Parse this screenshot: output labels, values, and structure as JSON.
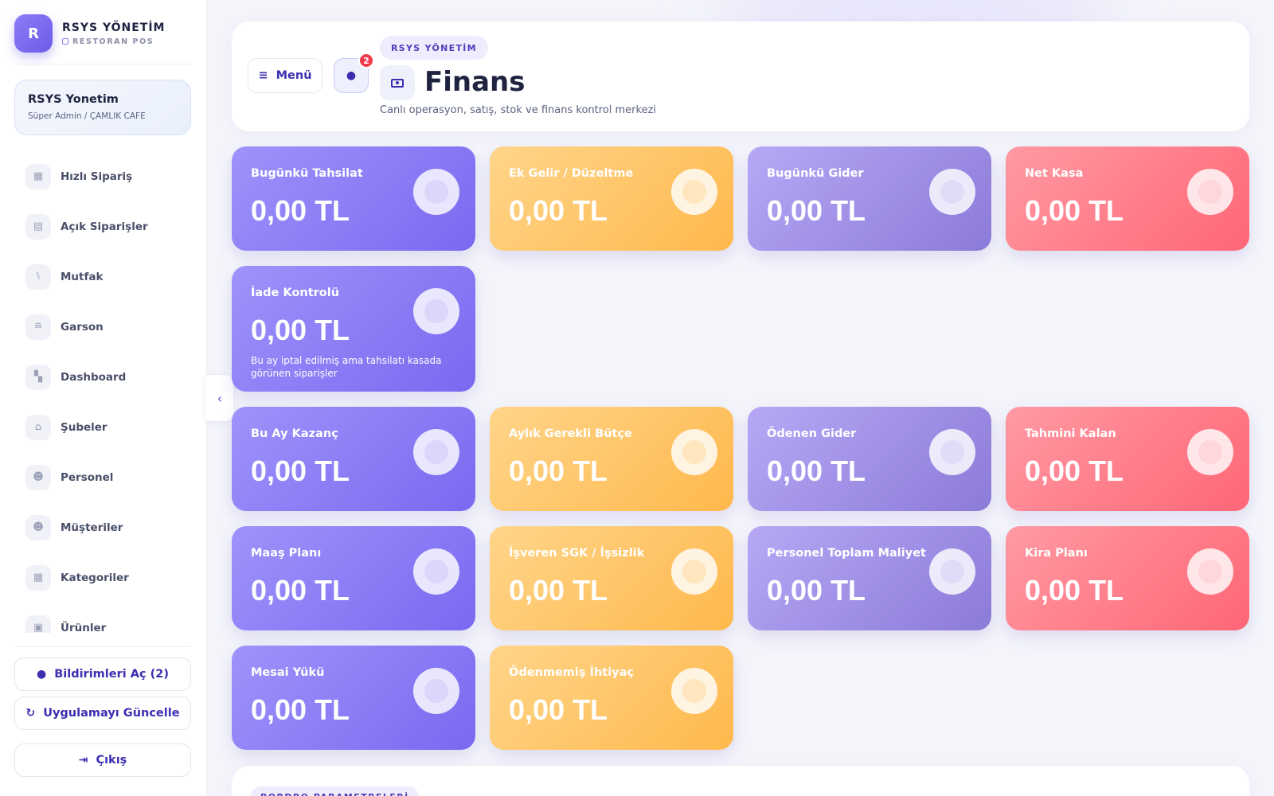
{
  "brand": {
    "logo_letter": "R",
    "title": "RSYS YÖNETİM",
    "subtitle": "RESTORAN POS"
  },
  "user": {
    "name": "RSYS Yonetim",
    "role": "Süper Admin / ÇAMLIK CAFE"
  },
  "nav": [
    {
      "label": "Hızlı Sipariş",
      "icon": "calculator-icon"
    },
    {
      "label": "Açık Siparişler",
      "icon": "receipt-icon"
    },
    {
      "label": "Mutfak",
      "icon": "utensils-icon"
    },
    {
      "label": "Garson",
      "icon": "tray-icon"
    },
    {
      "label": "Dashboard",
      "icon": "dashboard-icon"
    },
    {
      "label": "Şubeler",
      "icon": "store-icon"
    },
    {
      "label": "Personel",
      "icon": "people-icon"
    },
    {
      "label": "Müşteriler",
      "icon": "people-icon"
    },
    {
      "label": "Kategoriler",
      "icon": "grid-icon"
    },
    {
      "label": "Ürünler",
      "icon": "box-icon"
    }
  ],
  "sidebar_actions": {
    "notifications": "Bildirimleri Aç (2)",
    "update": "Uygulamayı Güncelle",
    "logout": "Çıkış"
  },
  "header": {
    "menu_label": "Menü",
    "bell_badge": "2",
    "pill": "RSYS YÖNETİM",
    "title": "Finans",
    "subtitle": "Canlı operasyon, satış, stok ve finans kontrol merkezi"
  },
  "cards": [
    {
      "label": "Bugünkü Tahsilat",
      "value": "0,00 TL",
      "theme": "purple"
    },
    {
      "label": "Ek Gelir / Düzeltme",
      "value": "0,00 TL",
      "theme": "orange"
    },
    {
      "label": "Bugünkü Gider",
      "value": "0,00 TL",
      "theme": "lavender"
    },
    {
      "label": "Net Kasa",
      "value": "0,00 TL",
      "theme": "red"
    },
    {
      "label": "İade Kontrolü",
      "value": "0,00 TL",
      "theme": "purple",
      "note": "Bu ay iptal edilmiş ama tahsilatı kasada görünen siparişler"
    },
    {
      "label": "Bu Ay Kazanç",
      "value": "0,00 TL",
      "theme": "purple"
    },
    {
      "label": "Aylık Gerekli Bütçe",
      "value": "0,00 TL",
      "theme": "orange"
    },
    {
      "label": "Ödenen Gider",
      "value": "0,00 TL",
      "theme": "lavender"
    },
    {
      "label": "Tahmini Kalan",
      "value": "0,00 TL",
      "theme": "red"
    },
    {
      "label": "Maaş Planı",
      "value": "0,00 TL",
      "theme": "purple"
    },
    {
      "label": "İşveren SGK / İşsizlik",
      "value": "0,00 TL",
      "theme": "orange"
    },
    {
      "label": "Personel Toplam Maliyet",
      "value": "0,00 TL",
      "theme": "lavender"
    },
    {
      "label": "Kira Planı",
      "value": "0,00 TL",
      "theme": "red"
    },
    {
      "label": "Mesai Yükü",
      "value": "0,00 TL",
      "theme": "purple"
    },
    {
      "label": "Ödenmemiş İhtiyaç",
      "value": "0,00 TL",
      "theme": "orange"
    }
  ],
  "bottom_panel": {
    "pill": "BORDRO PARAMETRELERİ"
  }
}
